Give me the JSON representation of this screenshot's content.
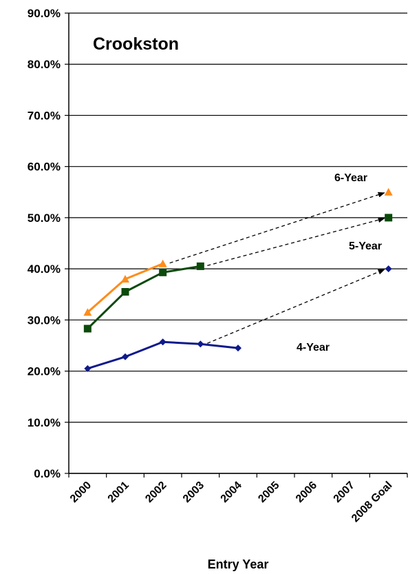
{
  "chart_data": {
    "type": "line",
    "title": "Crookston",
    "xlabel": "Entry Year",
    "ylabel": "",
    "categories": [
      "2000",
      "2001",
      "2002",
      "2003",
      "2004",
      "2005",
      "2006",
      "2007",
      "2008 Goal"
    ],
    "y_ticks": [
      "0.0%",
      "10.0%",
      "20.0%",
      "30.0%",
      "40.0%",
      "50.0%",
      "60.0%",
      "70.0%",
      "80.0%",
      "90.0%"
    ],
    "ylim": [
      0,
      90
    ],
    "grid": "horizontal",
    "legend": "none",
    "series": [
      {
        "name": "6-Year",
        "color": "#FF8C1A",
        "marker": "triangle",
        "values": [
          31.5,
          38.0,
          41.0,
          null,
          null,
          null,
          null,
          null,
          55.0
        ],
        "goal_arrow_from": "2002"
      },
      {
        "name": "5-Year",
        "color": "#0B4A0B",
        "marker": "square",
        "values": [
          28.3,
          35.5,
          39.3,
          40.5,
          null,
          null,
          null,
          null,
          50.0
        ],
        "goal_arrow_from": "2003"
      },
      {
        "name": "4-Year",
        "color": "#0F1A8C",
        "marker": "diamond",
        "values": [
          20.5,
          22.8,
          25.7,
          25.3,
          24.5,
          null,
          null,
          null,
          40.0
        ],
        "goal_arrow_from": "2003"
      }
    ]
  }
}
